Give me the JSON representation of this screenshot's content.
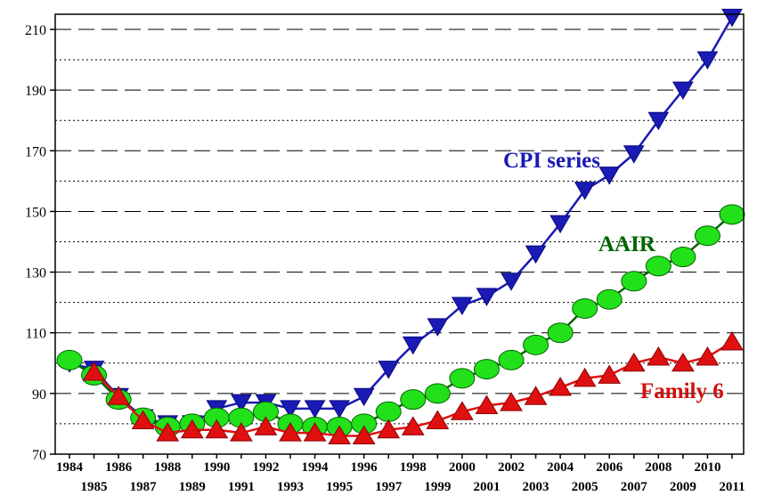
{
  "chart_data": {
    "type": "line",
    "title": "",
    "xlabel": "",
    "ylabel": "",
    "x": [
      1984,
      1985,
      1986,
      1987,
      1988,
      1989,
      1990,
      1991,
      1992,
      1993,
      1994,
      1995,
      1996,
      1997,
      1998,
      1999,
      2000,
      2001,
      2002,
      2003,
      2004,
      2005,
      2006,
      2007,
      2008,
      2009,
      2010,
      2011
    ],
    "x_tick_labels": [
      "1984",
      "1985",
      "1986",
      "1987",
      "1988",
      "1989",
      "1990",
      "1991",
      "1992",
      "1993",
      "1994",
      "1995",
      "1996",
      "1997",
      "1998",
      "1999",
      "2000",
      "2001",
      "2002",
      "2003",
      "2004",
      "2005",
      "2006",
      "2007",
      "2008",
      "2009",
      "2010",
      "2011"
    ],
    "ylim": [
      70,
      215
    ],
    "y_ticks": [
      70,
      90,
      110,
      130,
      150,
      170,
      190,
      210
    ],
    "y_tick_labels": [
      "70",
      "90",
      "110",
      "130",
      "150",
      "170",
      "190",
      "210"
    ],
    "grid": true,
    "series": [
      {
        "name": "CPI series",
        "color": "#1a1ab4",
        "marker": "triangle-down",
        "values": [
          100,
          98,
          89,
          82,
          80,
          80,
          85,
          87,
          87,
          85,
          85,
          85,
          89,
          98,
          106,
          112,
          119,
          122,
          127,
          136,
          146,
          157,
          162,
          169,
          180,
          190,
          200,
          214
        ]
      },
      {
        "name": "AAIR",
        "color": "#006400",
        "marker_color": "#22e01a",
        "marker": "circle",
        "values": [
          101,
          96,
          88,
          82,
          79,
          80,
          82,
          82,
          84,
          80,
          79,
          79,
          80,
          84,
          88,
          90,
          95,
          98,
          101,
          106,
          110,
          118,
          121,
          127,
          132,
          135,
          142,
          149
        ]
      },
      {
        "name": "Family 6",
        "color": "#e01010",
        "marker": "triangle-up",
        "values": [
          null,
          97,
          89,
          81,
          77,
          78,
          78,
          77,
          79,
          77,
          77,
          76,
          76,
          78,
          79,
          81,
          84,
          86,
          87,
          89,
          92,
          95,
          96,
          100,
          102,
          100,
          102,
          107
        ]
      }
    ],
    "labels": {
      "cpi": "CPI series",
      "aair": "AAIR",
      "family": "Family 6"
    }
  }
}
